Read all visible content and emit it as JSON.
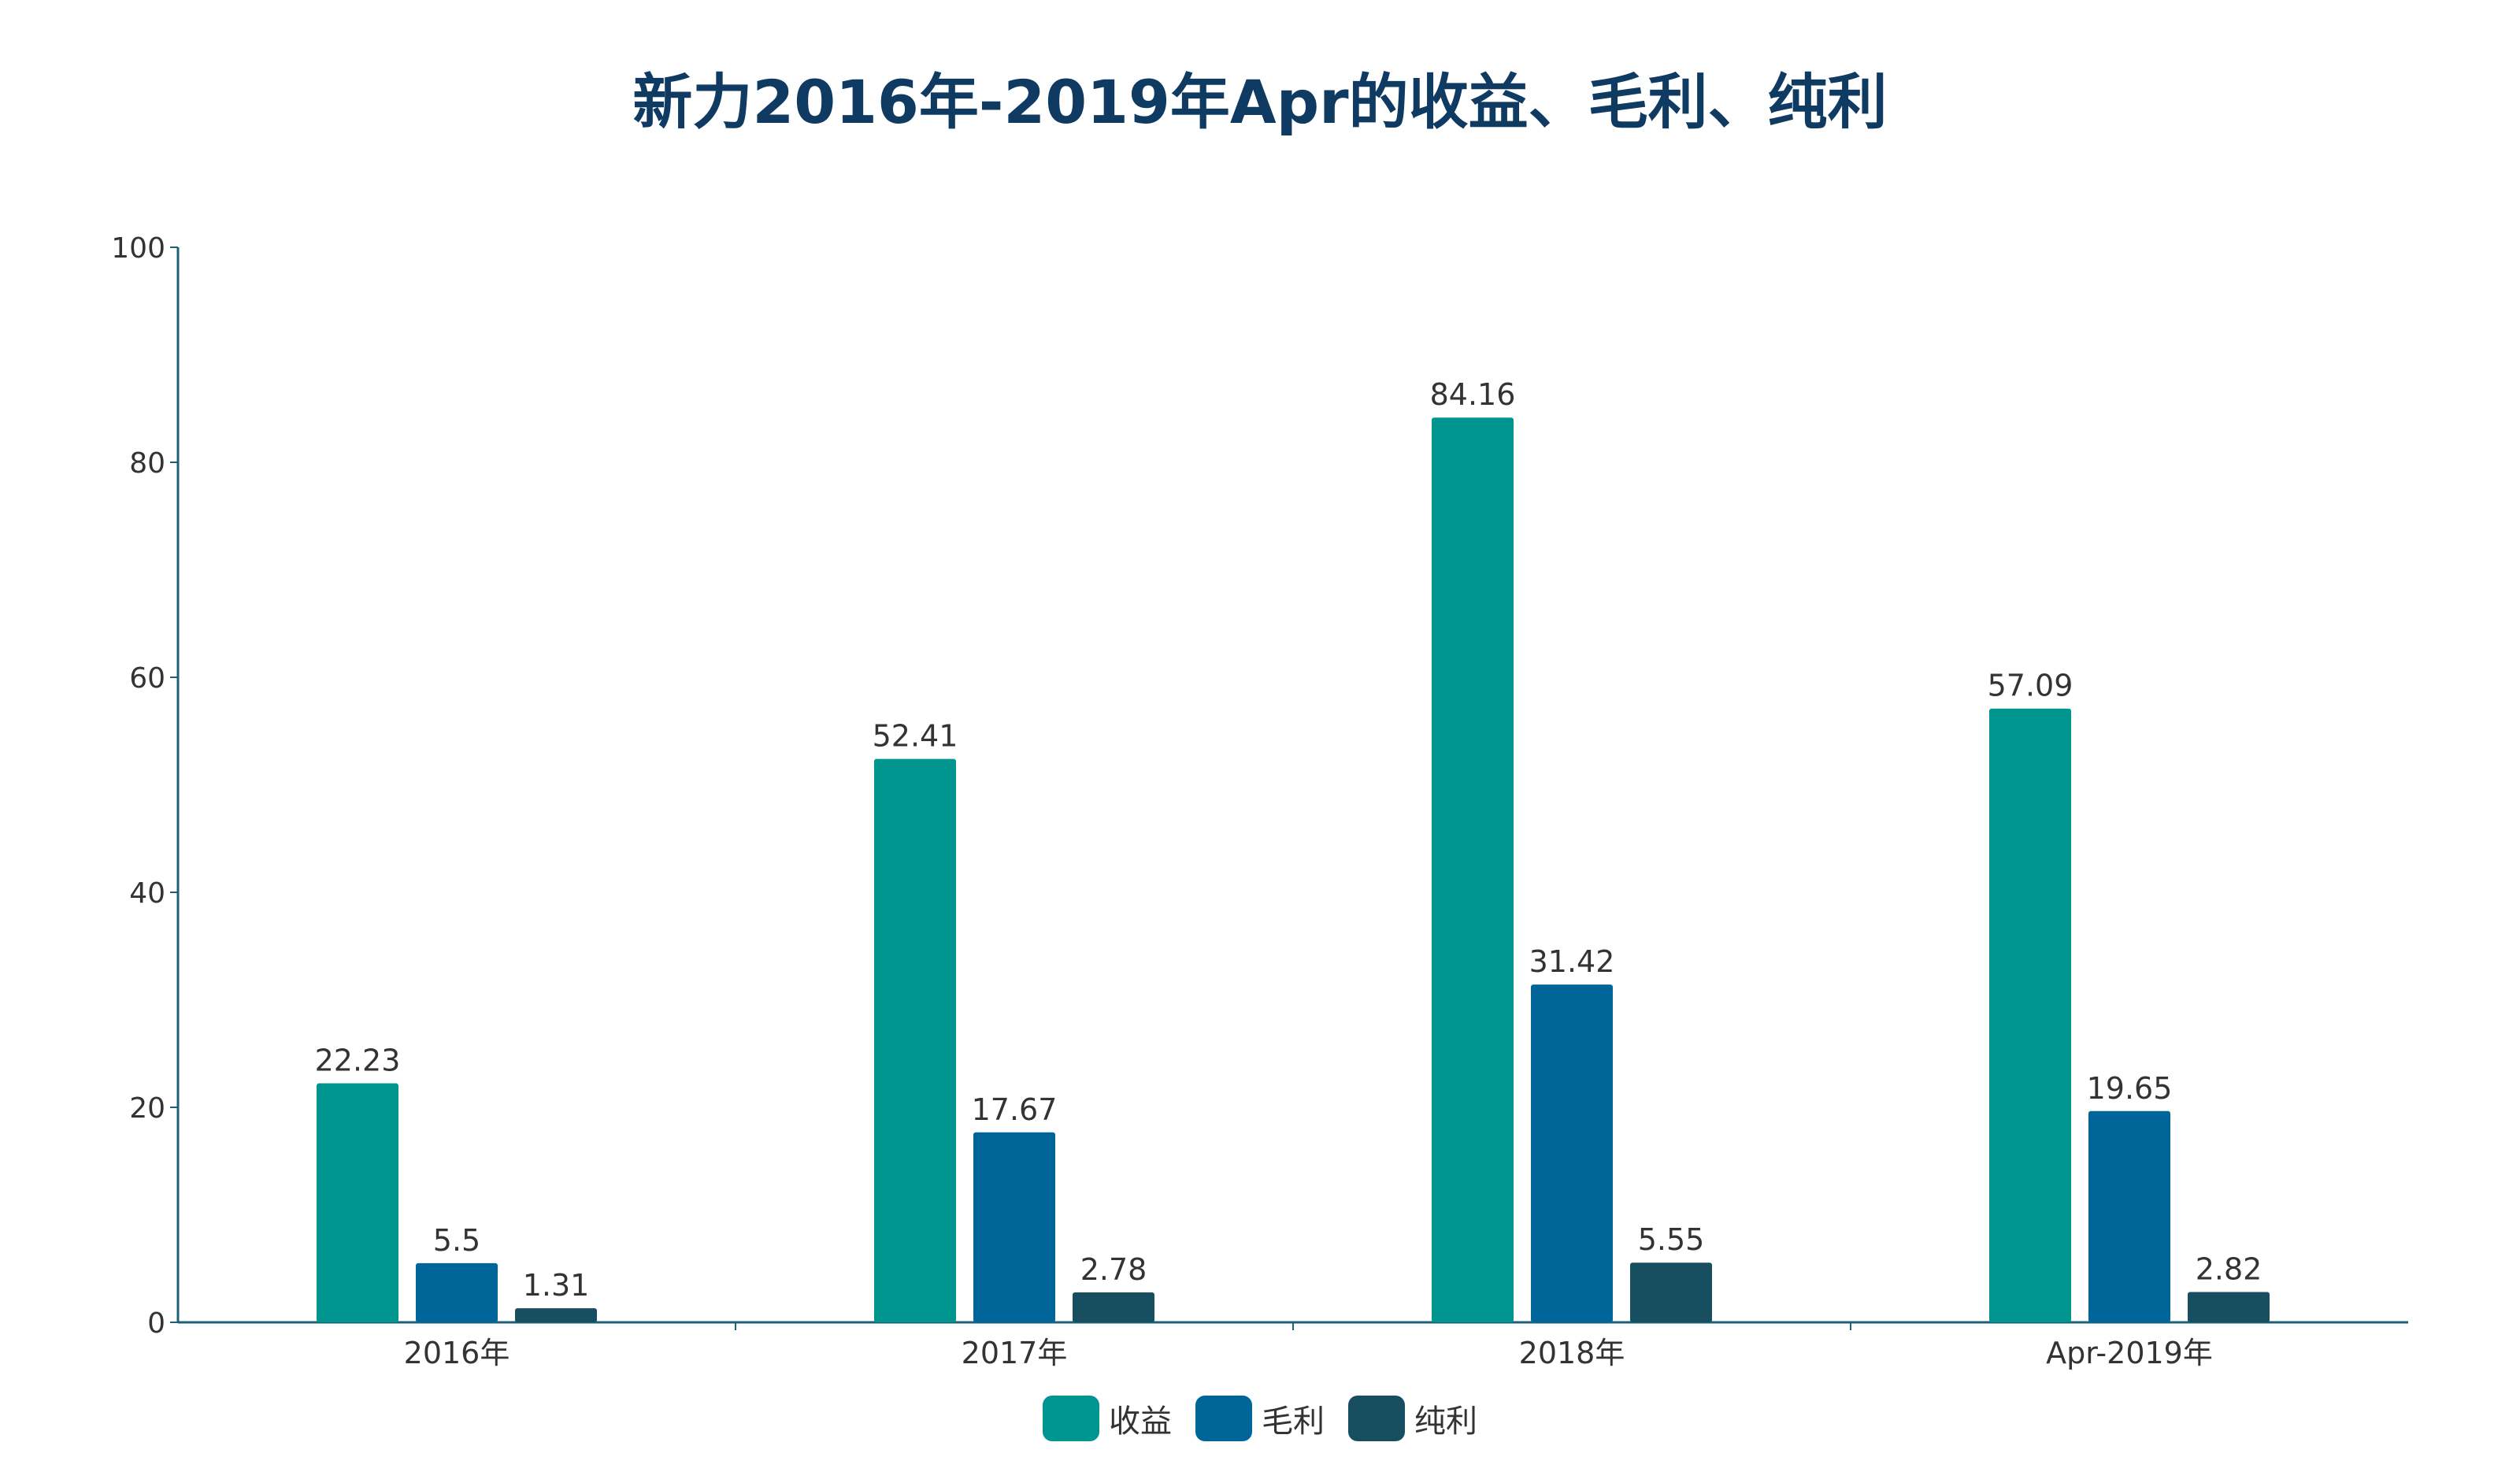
{
  "chart_data": {
    "type": "bar",
    "title": "新力2016年-2019年Apr的收益、毛利、纯利",
    "categories": [
      "2016年",
      "2017年",
      "2018年",
      "Apr-2019年"
    ],
    "series": [
      {
        "name": "收益",
        "color": "#00958f",
        "values": [
          22.23,
          52.41,
          84.16,
          57.09
        ]
      },
      {
        "name": "毛利",
        "color": "#006699",
        "values": [
          5.5,
          17.67,
          31.42,
          19.65
        ]
      },
      {
        "name": "纯利",
        "color": "#174f60",
        "values": [
          1.31,
          2.78,
          5.55,
          2.82
        ]
      }
    ],
    "ylim": [
      0,
      100
    ],
    "yticks": [
      0,
      20,
      40,
      60,
      80,
      100
    ],
    "xlabel": "",
    "ylabel": "",
    "grid": false,
    "legend_position": "bottom-center"
  }
}
